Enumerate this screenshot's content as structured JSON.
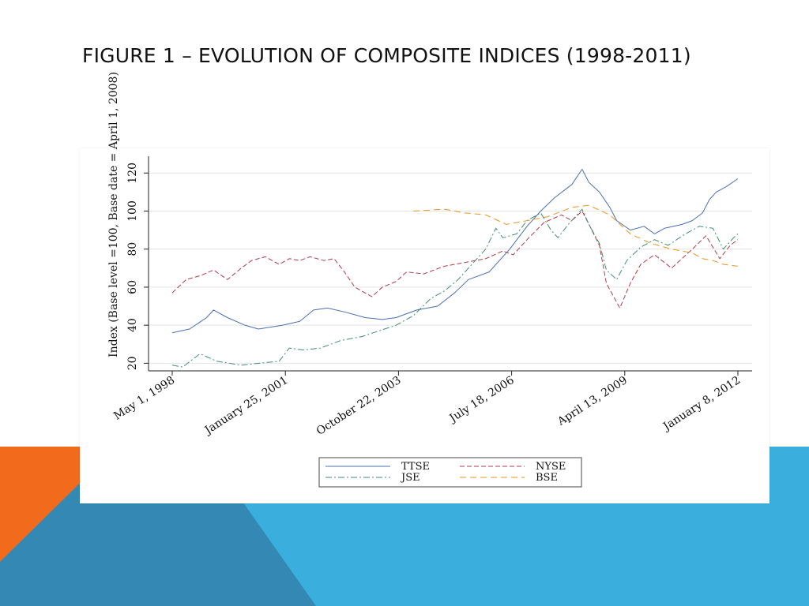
{
  "slide": {
    "title": "FIGURE 1 – EVOLUTION OF COMPOSITE INDICES (1998-2011)",
    "colors": {
      "orange": "#f26b1d",
      "blue_light": "#3aaedc",
      "blue_dark": "#3389b3"
    }
  },
  "chart_data": {
    "type": "line",
    "title": "",
    "xlabel": "",
    "ylabel": "Index (Base level =100, Base date = April 1, 2008)",
    "xlim": [
      "1998-05-01",
      "2012-01-08"
    ],
    "ylim": [
      16,
      128
    ],
    "yticks": [
      20,
      40,
      60,
      80,
      100,
      120
    ],
    "xticks": [
      {
        "date": "1998-05-01",
        "label": "May 1, 1998"
      },
      {
        "date": "2001-01-25",
        "label": "January 25, 2001"
      },
      {
        "date": "2003-10-22",
        "label": "October 22, 2003"
      },
      {
        "date": "2006-07-18",
        "label": "July 18, 2006"
      },
      {
        "date": "2009-04-13",
        "label": "April 13, 2009"
      },
      {
        "date": "2012-01-08",
        "label": "January 8, 2012"
      }
    ],
    "grid": true,
    "legend_position": "bottom",
    "series": [
      {
        "name": "TTSE",
        "color": "#4a6fb3",
        "dash": "",
        "points": [
          [
            "1998-05-01",
            36
          ],
          [
            "1998-10-01",
            38
          ],
          [
            "1999-03-01",
            44
          ],
          [
            "1999-05-01",
            48
          ],
          [
            "1999-09-01",
            44
          ],
          [
            "2000-02-01",
            40
          ],
          [
            "2000-06-01",
            38
          ],
          [
            "2001-01-01",
            40
          ],
          [
            "2001-06-01",
            42
          ],
          [
            "2001-10-01",
            48
          ],
          [
            "2002-02-01",
            49
          ],
          [
            "2002-07-01",
            47
          ],
          [
            "2003-01-01",
            44
          ],
          [
            "2003-06-01",
            43
          ],
          [
            "2003-10-01",
            44
          ],
          [
            "2004-04-01",
            48
          ],
          [
            "2004-10-01",
            50
          ],
          [
            "2005-03-01",
            57
          ],
          [
            "2005-07-01",
            64
          ],
          [
            "2006-01-01",
            68
          ],
          [
            "2006-07-01",
            80
          ],
          [
            "2006-12-01",
            92
          ],
          [
            "2007-04-01",
            100
          ],
          [
            "2007-08-01",
            107
          ],
          [
            "2008-01-01",
            114
          ],
          [
            "2008-04-01",
            122
          ],
          [
            "2008-06-01",
            115
          ],
          [
            "2008-09-01",
            110
          ],
          [
            "2008-12-01",
            102
          ],
          [
            "2009-02-01",
            95
          ],
          [
            "2009-06-01",
            90
          ],
          [
            "2009-10-01",
            92
          ],
          [
            "2010-01-01",
            88
          ],
          [
            "2010-04-01",
            91
          ],
          [
            "2010-09-01",
            93
          ],
          [
            "2010-12-01",
            95
          ],
          [
            "2011-03-01",
            99
          ],
          [
            "2011-05-01",
            106
          ],
          [
            "2011-07-01",
            110
          ],
          [
            "2011-10-01",
            113
          ],
          [
            "2012-01-08",
            117
          ]
        ]
      },
      {
        "name": "NYSE",
        "color": "#b03a4a",
        "dash": "6,3",
        "points": [
          [
            "1998-05-01",
            57
          ],
          [
            "1998-09-01",
            64
          ],
          [
            "1999-01-01",
            66
          ],
          [
            "1999-05-01",
            69
          ],
          [
            "1999-09-01",
            64
          ],
          [
            "2000-01-01",
            70
          ],
          [
            "2000-04-01",
            74
          ],
          [
            "2000-08-01",
            76
          ],
          [
            "2000-12-01",
            72
          ],
          [
            "2001-03-01",
            75
          ],
          [
            "2001-06-01",
            74
          ],
          [
            "2001-09-01",
            76
          ],
          [
            "2002-01-01",
            74
          ],
          [
            "2002-04-01",
            75
          ],
          [
            "2002-07-01",
            68
          ],
          [
            "2002-10-01",
            60
          ],
          [
            "2003-03-01",
            55
          ],
          [
            "2003-06-01",
            60
          ],
          [
            "2003-10-01",
            63
          ],
          [
            "2004-01-01",
            68
          ],
          [
            "2004-06-01",
            67
          ],
          [
            "2004-12-01",
            71
          ],
          [
            "2005-06-01",
            73
          ],
          [
            "2005-12-01",
            75
          ],
          [
            "2006-05-01",
            79
          ],
          [
            "2006-08-01",
            77
          ],
          [
            "2006-12-01",
            85
          ],
          [
            "2007-05-01",
            94
          ],
          [
            "2007-10-01",
            98
          ],
          [
            "2008-01-01",
            95
          ],
          [
            "2008-04-01",
            100
          ],
          [
            "2008-06-01",
            93
          ],
          [
            "2008-09-01",
            82
          ],
          [
            "2008-11-01",
            62
          ],
          [
            "2009-03-01",
            49
          ],
          [
            "2009-06-01",
            62
          ],
          [
            "2009-09-01",
            72
          ],
          [
            "2010-01-01",
            77
          ],
          [
            "2010-06-01",
            70
          ],
          [
            "2010-12-01",
            80
          ],
          [
            "2011-04-01",
            87
          ],
          [
            "2011-08-01",
            75
          ],
          [
            "2011-11-01",
            82
          ],
          [
            "2012-01-08",
            85
          ]
        ]
      },
      {
        "name": "JSE",
        "color": "#3f8f6b",
        "dash": "8,3,2,3",
        "points": [
          [
            "1998-05-01",
            19
          ],
          [
            "1998-08-01",
            18
          ],
          [
            "1999-01-01",
            25
          ],
          [
            "1999-06-01",
            21
          ],
          [
            "2000-01-01",
            19
          ],
          [
            "2000-06-01",
            20
          ],
          [
            "2000-12-01",
            21
          ],
          [
            "2001-03-01",
            28
          ],
          [
            "2001-07-01",
            27
          ],
          [
            "2001-12-01",
            28
          ],
          [
            "2002-06-01",
            32
          ],
          [
            "2002-12-01",
            34
          ],
          [
            "2003-05-01",
            37
          ],
          [
            "2003-10-01",
            40
          ],
          [
            "2004-03-01",
            45
          ],
          [
            "2004-08-01",
            54
          ],
          [
            "2004-12-01",
            58
          ],
          [
            "2005-04-01",
            64
          ],
          [
            "2005-08-01",
            72
          ],
          [
            "2005-12-01",
            80
          ],
          [
            "2006-03-01",
            91
          ],
          [
            "2006-05-01",
            86
          ],
          [
            "2006-09-01",
            88
          ],
          [
            "2006-12-01",
            95
          ],
          [
            "2007-04-01",
            99
          ],
          [
            "2007-07-01",
            90
          ],
          [
            "2007-09-01",
            86
          ],
          [
            "2007-12-01",
            93
          ],
          [
            "2008-04-01",
            101
          ],
          [
            "2008-06-01",
            93
          ],
          [
            "2008-09-01",
            83
          ],
          [
            "2008-11-01",
            69
          ],
          [
            "2009-02-01",
            64
          ],
          [
            "2009-05-01",
            74
          ],
          [
            "2009-09-01",
            81
          ],
          [
            "2010-01-01",
            85
          ],
          [
            "2010-05-01",
            82
          ],
          [
            "2010-10-01",
            88
          ],
          [
            "2011-02-01",
            92
          ],
          [
            "2011-06-01",
            91
          ],
          [
            "2011-09-01",
            80
          ],
          [
            "2011-12-01",
            86
          ],
          [
            "2012-01-08",
            88
          ]
        ]
      },
      {
        "name": "BSE",
        "color": "#e8941f",
        "dash": "8,5",
        "points": [
          [
            "2004-03-01",
            100
          ],
          [
            "2004-12-01",
            101
          ],
          [
            "2005-06-01",
            99
          ],
          [
            "2005-12-01",
            98
          ],
          [
            "2006-06-01",
            93
          ],
          [
            "2006-12-01",
            95
          ],
          [
            "2007-06-01",
            97
          ],
          [
            "2008-01-01",
            102
          ],
          [
            "2008-06-01",
            103
          ],
          [
            "2008-12-01",
            98
          ],
          [
            "2009-06-01",
            88
          ],
          [
            "2009-12-01",
            83
          ],
          [
            "2010-06-01",
            80
          ],
          [
            "2010-12-01",
            78
          ],
          [
            "2011-03-01",
            75
          ],
          [
            "2011-06-01",
            74
          ],
          [
            "2011-09-01",
            72
          ],
          [
            "2012-01-08",
            71
          ]
        ]
      }
    ]
  }
}
